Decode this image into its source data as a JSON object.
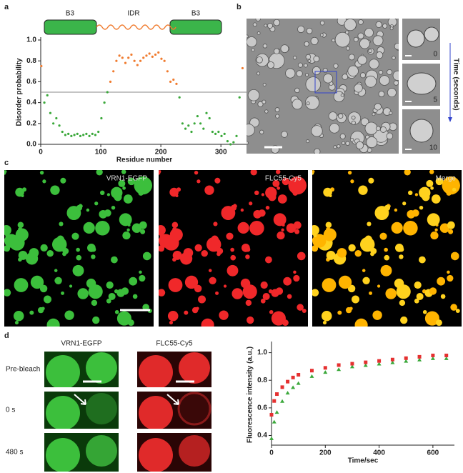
{
  "panel_labels": [
    "a",
    "b",
    "c",
    "d"
  ],
  "domains": {
    "left": "B3",
    "middle": "IDR",
    "right": "B3"
  },
  "panel_b": {
    "time_axis": "Time (seconds)",
    "frames": [
      "0",
      "5",
      "10"
    ]
  },
  "panel_c": {
    "channels": [
      "VRN1-EGFP",
      "FLC55-Cy5",
      "Merge"
    ]
  },
  "panel_d": {
    "channels": [
      "VRN1-EGFP",
      "FLC55-Cy5"
    ],
    "rows": [
      "Pre-bleach",
      "0 s",
      "480 s"
    ]
  },
  "chart_data": [
    {
      "type": "scatter",
      "xlabel": "Residue number",
      "ylabel": "Disorder probability",
      "x": [
        1,
        6,
        11,
        16,
        21,
        26,
        31,
        36,
        41,
        46,
        51,
        56,
        61,
        66,
        71,
        76,
        81,
        86,
        91,
        96,
        101,
        106,
        111,
        116,
        121,
        126,
        131,
        136,
        141,
        146,
        151,
        156,
        161,
        166,
        171,
        176,
        181,
        186,
        191,
        196,
        201,
        206,
        211,
        216,
        221,
        226,
        231,
        236,
        241,
        246,
        251,
        256,
        261,
        266,
        271,
        276,
        281,
        286,
        291,
        296,
        301,
        306,
        311,
        316,
        321,
        326,
        331,
        336
      ],
      "values": [
        0.75,
        0.4,
        0.47,
        0.3,
        0.2,
        0.25,
        0.18,
        0.12,
        0.09,
        0.1,
        0.08,
        0.09,
        0.1,
        0.08,
        0.09,
        0.1,
        0.08,
        0.1,
        0.09,
        0.12,
        0.25,
        0.4,
        0.5,
        0.6,
        0.7,
        0.8,
        0.85,
        0.83,
        0.78,
        0.83,
        0.86,
        0.8,
        0.76,
        0.8,
        0.83,
        0.85,
        0.87,
        0.84,
        0.86,
        0.88,
        0.82,
        0.8,
        0.7,
        0.6,
        0.62,
        0.58,
        0.45,
        0.2,
        0.15,
        0.18,
        0.12,
        0.2,
        0.27,
        0.2,
        0.15,
        0.3,
        0.25,
        0.12,
        0.1,
        0.12,
        0.08,
        0.1,
        0.03,
        0,
        0.02,
        0.08,
        0.45,
        0.73
      ],
      "threshold": 0.5,
      "color_above": "#f07b2f",
      "color_below": "#3aa83a",
      "xlim": [
        0,
        345
      ],
      "xticks": [
        0,
        100,
        200,
        300
      ],
      "ylim": [
        0,
        1.0
      ],
      "yticks": [
        {
          "value": 0,
          "label": "0.0"
        },
        0.2,
        0.4,
        0.6,
        0.8,
        {
          "value": 1.0,
          "label": "1.0"
        }
      ]
    },
    {
      "type": "scatter",
      "xlabel": "Time/sec",
      "ylabel": "Fluorescence intensity (a.u.)",
      "x": [
        0,
        10,
        20,
        40,
        60,
        80,
        100,
        150,
        200,
        250,
        300,
        350,
        400,
        450,
        500,
        550,
        600,
        650
      ],
      "series": [
        {
          "color": "#3aa83a",
          "values": [
            0.38,
            0.5,
            0.57,
            0.65,
            0.71,
            0.75,
            0.78,
            0.83,
            0.86,
            0.88,
            0.9,
            0.91,
            0.92,
            0.93,
            0.94,
            0.95,
            0.96,
            0.96
          ]
        },
        {
          "color": "#e53030",
          "values": [
            0.55,
            0.65,
            0.7,
            0.75,
            0.79,
            0.82,
            0.84,
            0.87,
            0.89,
            0.91,
            0.92,
            0.93,
            0.94,
            0.95,
            0.96,
            0.97,
            0.98,
            0.98
          ]
        }
      ],
      "xlim": [
        0,
        680
      ],
      "xticks": [
        0,
        200,
        400,
        600
      ],
      "ylim": [
        0.33,
        1.06
      ],
      "yticks": [
        0.4,
        0.6,
        0.8,
        {
          "value": 1.0,
          "label": "1.0"
        }
      ]
    }
  ]
}
